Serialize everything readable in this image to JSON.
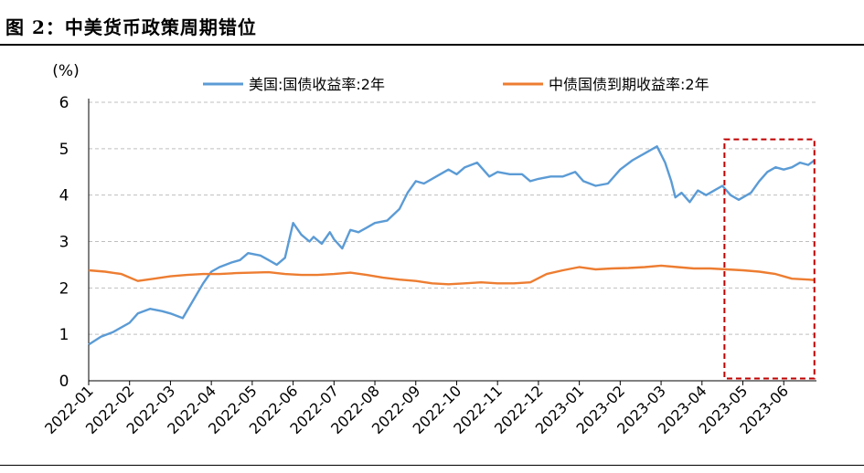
{
  "title": "图 2：中美货币政策周期错位",
  "chart_data": {
    "type": "line",
    "title": "图 2：中美货币政策周期错位",
    "ylabel": "(%)",
    "xlabel": "",
    "ylim": [
      0,
      6
    ],
    "yticks": [
      "0",
      "1",
      "2",
      "3",
      "4",
      "5",
      "6"
    ],
    "xticks": [
      "2022-01",
      "2022-02",
      "2022-03",
      "2022-04",
      "2022-05",
      "2022-06",
      "2022-07",
      "2022-08",
      "2022-09",
      "2022-10",
      "2022-11",
      "2022-12",
      "2023-01",
      "2023-02",
      "2023-03",
      "2023-04",
      "2023-05",
      "2023-06"
    ],
    "xrange": [
      0,
      17.8
    ],
    "grid": "horizontal dashed",
    "legend_position": "top",
    "highlight_box": {
      "x_start": 15.55,
      "x_end": 17.75,
      "y_start": 0.05,
      "y_end": 5.2,
      "color": "#c00000",
      "style": "dashed"
    },
    "series": [
      {
        "name": "美国:国债收益率:2年",
        "color": "#5b9bd5",
        "x": [
          0,
          0.3,
          0.6,
          1.0,
          1.2,
          1.5,
          1.8,
          2.0,
          2.3,
          2.6,
          2.8,
          3.0,
          3.2,
          3.5,
          3.7,
          3.9,
          4.2,
          4.4,
          4.6,
          4.8,
          5.0,
          5.2,
          5.4,
          5.5,
          5.7,
          5.9,
          6.0,
          6.2,
          6.4,
          6.6,
          6.8,
          7.0,
          7.3,
          7.6,
          7.8,
          8.0,
          8.2,
          8.5,
          8.8,
          9.0,
          9.2,
          9.5,
          9.8,
          10.0,
          10.3,
          10.6,
          10.8,
          11.0,
          11.3,
          11.6,
          11.9,
          12.1,
          12.4,
          12.7,
          13.0,
          13.3,
          13.6,
          13.9,
          14.1,
          14.25,
          14.35,
          14.5,
          14.7,
          14.9,
          15.1,
          15.3,
          15.5,
          15.7,
          15.9,
          16.0,
          16.2,
          16.4,
          16.6,
          16.8,
          17.0,
          17.2,
          17.4,
          17.6,
          17.75
        ],
        "values": [
          0.78,
          0.95,
          1.05,
          1.25,
          1.45,
          1.55,
          1.5,
          1.45,
          1.35,
          1.8,
          2.1,
          2.35,
          2.45,
          2.55,
          2.6,
          2.75,
          2.7,
          2.6,
          2.5,
          2.65,
          3.4,
          3.15,
          3.0,
          3.1,
          2.95,
          3.2,
          3.05,
          2.85,
          3.25,
          3.2,
          3.3,
          3.4,
          3.45,
          3.7,
          4.05,
          4.3,
          4.25,
          4.4,
          4.55,
          4.45,
          4.6,
          4.7,
          4.4,
          4.5,
          4.45,
          4.45,
          4.3,
          4.35,
          4.4,
          4.4,
          4.5,
          4.3,
          4.2,
          4.25,
          4.55,
          4.75,
          4.9,
          5.05,
          4.7,
          4.3,
          3.95,
          4.05,
          3.85,
          4.1,
          4.0,
          4.1,
          4.2,
          4.0,
          3.9,
          3.95,
          4.05,
          4.3,
          4.5,
          4.6,
          4.55,
          4.6,
          4.7,
          4.65,
          4.75
        ]
      },
      {
        "name": "中债国债到期收益率:2年",
        "color": "#ed7d31",
        "x": [
          0,
          0.4,
          0.8,
          1.2,
          1.6,
          2.0,
          2.4,
          2.8,
          3.2,
          3.6,
          4.0,
          4.4,
          4.8,
          5.2,
          5.6,
          6.0,
          6.4,
          6.8,
          7.2,
          7.6,
          8.0,
          8.4,
          8.8,
          9.2,
          9.6,
          10.0,
          10.4,
          10.8,
          11.2,
          11.6,
          12.0,
          12.4,
          12.8,
          13.2,
          13.6,
          14.0,
          14.4,
          14.8,
          15.2,
          15.6,
          16.0,
          16.4,
          16.8,
          17.2,
          17.6,
          17.75
        ],
        "values": [
          2.38,
          2.35,
          2.3,
          2.15,
          2.2,
          2.25,
          2.28,
          2.3,
          2.3,
          2.32,
          2.33,
          2.34,
          2.3,
          2.28,
          2.28,
          2.3,
          2.33,
          2.28,
          2.22,
          2.18,
          2.15,
          2.1,
          2.08,
          2.1,
          2.12,
          2.1,
          2.1,
          2.12,
          2.3,
          2.38,
          2.45,
          2.4,
          2.42,
          2.43,
          2.45,
          2.48,
          2.45,
          2.42,
          2.42,
          2.4,
          2.38,
          2.35,
          2.3,
          2.2,
          2.18,
          2.17
        ]
      }
    ]
  }
}
